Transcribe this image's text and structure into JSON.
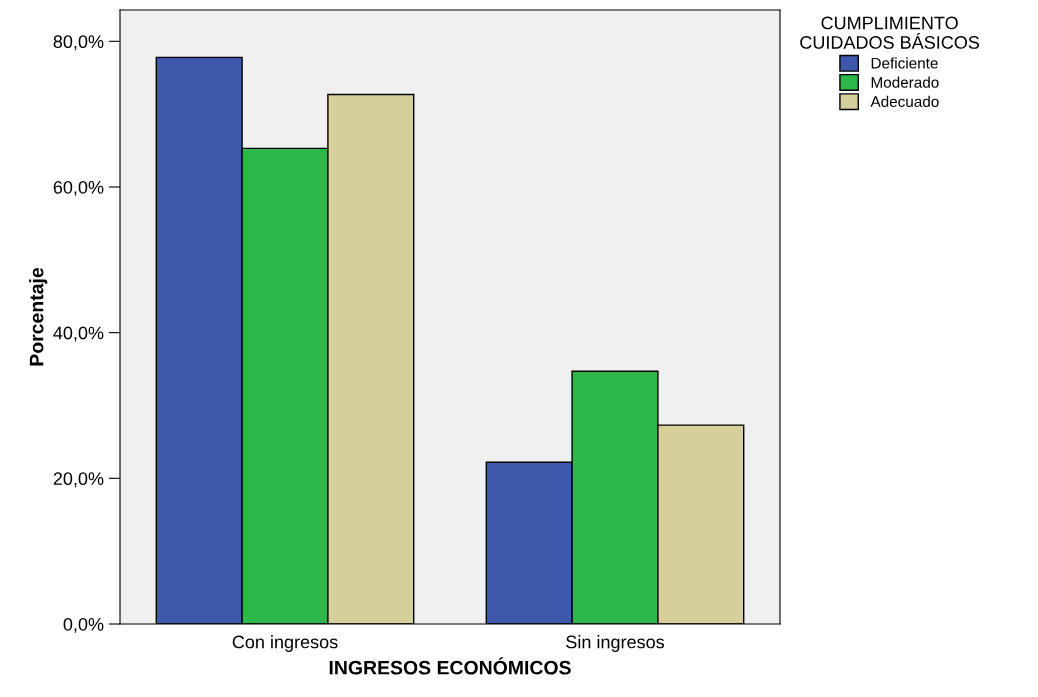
{
  "chart_data": {
    "type": "bar",
    "xlabel": "INGRESOS ECONÓMICOS",
    "ylabel": "Porcentaje",
    "legend_title": "CUMPLIMIENTO\nCUIDADOS BÁSICOS",
    "categories": [
      "Con ingresos",
      "Sin ingresos"
    ],
    "series": [
      {
        "name": "Deficiente",
        "color": "#3e58ac",
        "values": [
          77.8,
          22.2
        ]
      },
      {
        "name": "Moderado",
        "color": "#2fb84a",
        "values": [
          65.3,
          34.7
        ]
      },
      {
        "name": "Adecuado",
        "color": "#d4cf9b",
        "values": [
          72.7,
          27.3
        ]
      }
    ],
    "ylim": [
      0,
      84.3
    ],
    "yticks": [
      {
        "value": 0,
        "label": "0,0%"
      },
      {
        "value": 20,
        "label": "20,0%"
      },
      {
        "value": 40,
        "label": "40,0%"
      },
      {
        "value": 60,
        "label": "60,0%"
      },
      {
        "value": 80,
        "label": "80,0%"
      }
    ],
    "grid": false,
    "legend": "top right"
  }
}
